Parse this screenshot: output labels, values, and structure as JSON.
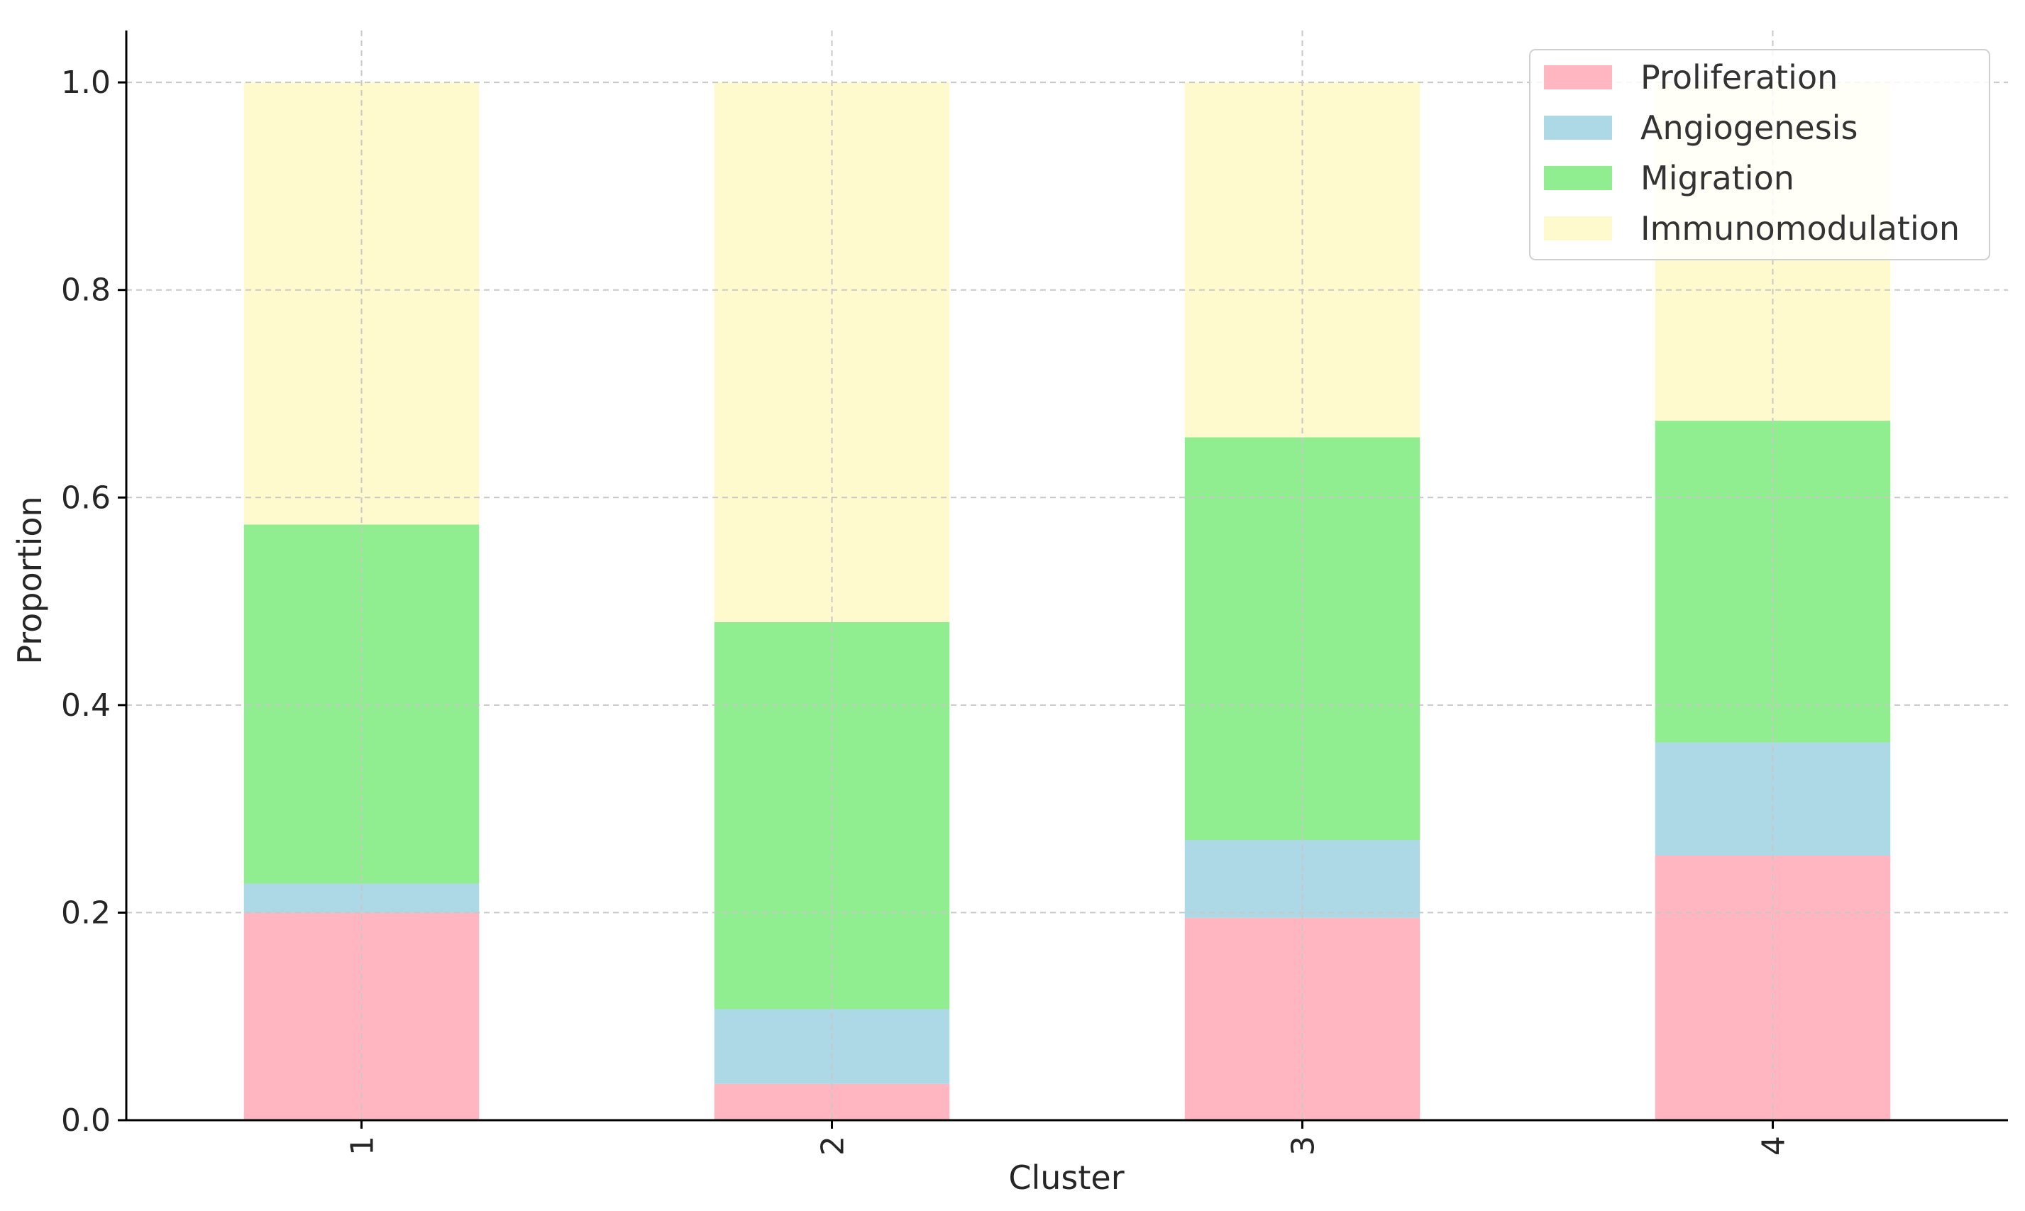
{
  "chart_data": {
    "type": "bar",
    "stacked": true,
    "orientation": "vertical",
    "title": "",
    "xlabel": "Cluster",
    "ylabel": "Proportion",
    "categories": [
      "1",
      "2",
      "3",
      "4"
    ],
    "ylim": [
      0,
      1.05
    ],
    "yticks": [
      "0.0",
      "0.2",
      "0.4",
      "0.6",
      "0.8",
      "1.0"
    ],
    "grid": true,
    "legend_position": "top-right",
    "series": [
      {
        "name": "Proliferation",
        "color": "#FFB6C1",
        "values": [
          0.2,
          0.035,
          0.195,
          0.255
        ]
      },
      {
        "name": "Angiogenesis",
        "color": "#ADD8E6",
        "values": [
          0.028,
          0.072,
          0.075,
          0.109
        ]
      },
      {
        "name": "Migration",
        "color": "#90EE90",
        "values": [
          0.346,
          0.373,
          0.388,
          0.31
        ]
      },
      {
        "name": "Immunomodulation",
        "color": "#FFFACD",
        "values": [
          0.426,
          0.52,
          0.342,
          0.326
        ]
      }
    ]
  }
}
